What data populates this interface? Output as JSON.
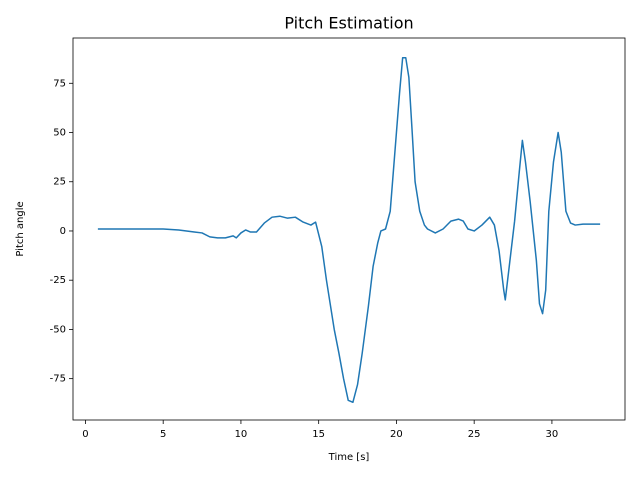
{
  "chart_data": {
    "type": "line",
    "title": "Pitch Estimation",
    "xlabel": "Time [s]",
    "ylabel": "Pitch angle",
    "x": [
      0.8,
      2,
      4,
      5,
      6,
      7,
      7.5,
      8,
      8.5,
      9,
      9.5,
      9.7,
      10,
      10.3,
      10.6,
      11,
      11.5,
      12,
      12.5,
      13,
      13.5,
      14,
      14.5,
      14.8,
      15.2,
      15.5,
      16,
      16.3,
      16.6,
      16.9,
      17.2,
      17.5,
      17.8,
      18.2,
      18.5,
      18.8,
      19,
      19.3,
      19.6,
      19.8,
      20,
      20.2,
      20.4,
      20.6,
      20.8,
      21,
      21.2,
      21.5,
      21.8,
      22,
      22.5,
      23,
      23.5,
      24,
      24.3,
      24.6,
      25,
      25.5,
      26,
      26.3,
      26.6,
      26.9,
      27,
      27.3,
      27.6,
      27.9,
      28.1,
      28.3,
      28.6,
      29,
      29.2,
      29.4,
      29.6,
      29.8,
      30.1,
      30.4,
      30.6,
      30.9,
      31.2,
      31.5,
      32,
      33.1
    ],
    "values": [
      1,
      1,
      1,
      1,
      0.5,
      -0.5,
      -1,
      -3,
      -3.5,
      -3.5,
      -2.5,
      -3.5,
      -1,
      0.5,
      -0.5,
      -0.5,
      4,
      7,
      7.5,
      6.5,
      7,
      4.5,
      3,
      4.5,
      -8,
      -25,
      -50,
      -62,
      -75,
      -86,
      -87,
      -78,
      -62,
      -38,
      -18,
      -6,
      0,
      1,
      10,
      30,
      50,
      70,
      88,
      88,
      78,
      52,
      25,
      10,
      3,
      1,
      -1,
      1,
      5,
      6,
      5,
      1,
      0,
      3,
      7,
      3,
      -10,
      -30,
      -35,
      -15,
      5,
      30,
      46,
      35,
      15,
      -15,
      -37,
      -42,
      -30,
      10,
      35,
      50,
      40,
      10,
      4,
      3,
      3.5,
      3.5
    ],
    "color": "#1f77b4",
    "xlim": [
      -0.8,
      34.7
    ],
    "ylim": [
      -96,
      98
    ],
    "xticks": [
      0,
      5,
      10,
      15,
      20,
      25,
      30
    ],
    "yticks": [
      -75,
      -50,
      -25,
      0,
      25,
      50,
      75
    ]
  }
}
